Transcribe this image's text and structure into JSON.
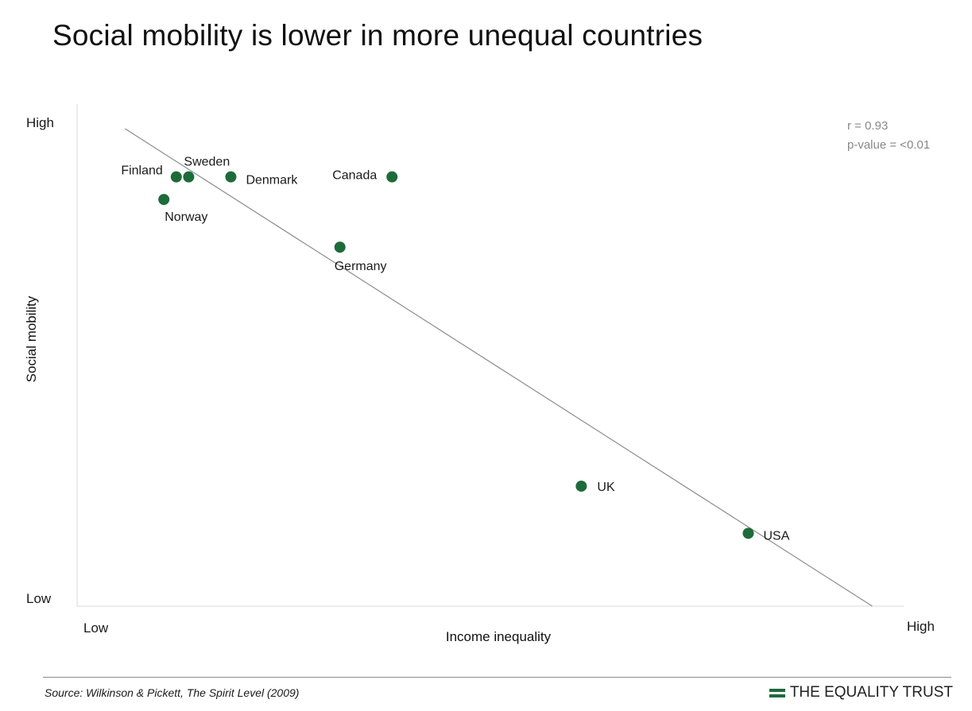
{
  "title": "Social mobility is lower in more unequal countries",
  "colors": {
    "point": "#1e6b3a",
    "trend_line": "#8c8c8c",
    "axis": "#d9d9d9",
    "brand": "#1e6b3a"
  },
  "chart_data": {
    "type": "scatter",
    "title": "Social mobility is lower in more unequal countries",
    "xlabel": "Income inequality",
    "ylabel": "Social mobility",
    "x_tick_labels": [
      "Low",
      "High"
    ],
    "y_tick_labels": [
      "High",
      "Low"
    ],
    "xlim": [
      0,
      100
    ],
    "ylim": [
      0,
      100
    ],
    "grid": false,
    "legend": "none",
    "points": [
      {
        "label": "Finland",
        "x": 12.0,
        "y": 85.5
      },
      {
        "label": "Sweden",
        "x": 13.5,
        "y": 85.5
      },
      {
        "label": "Denmark",
        "x": 18.6,
        "y": 85.5
      },
      {
        "label": "Canada",
        "x": 38.1,
        "y": 85.5
      },
      {
        "label": "Norway",
        "x": 10.5,
        "y": 81.0
      },
      {
        "label": "Germany",
        "x": 31.8,
        "y": 71.5
      },
      {
        "label": "UK",
        "x": 61.0,
        "y": 23.9
      },
      {
        "label": "USA",
        "x": 81.2,
        "y": 14.5
      }
    ],
    "trend_line": {
      "x": [
        5.8,
        96.2
      ],
      "y": [
        95.1,
        0
      ]
    },
    "annotations": {
      "r": "r = 0.93",
      "p_value": "p-value = <0.01"
    }
  },
  "footer": {
    "source": "Source: Wilkinson & Pickett, The Spirit Level (2009)",
    "brand": "THE EQUALITY TRUST",
    "brand_icon": "equality-trust-bars-icon"
  }
}
